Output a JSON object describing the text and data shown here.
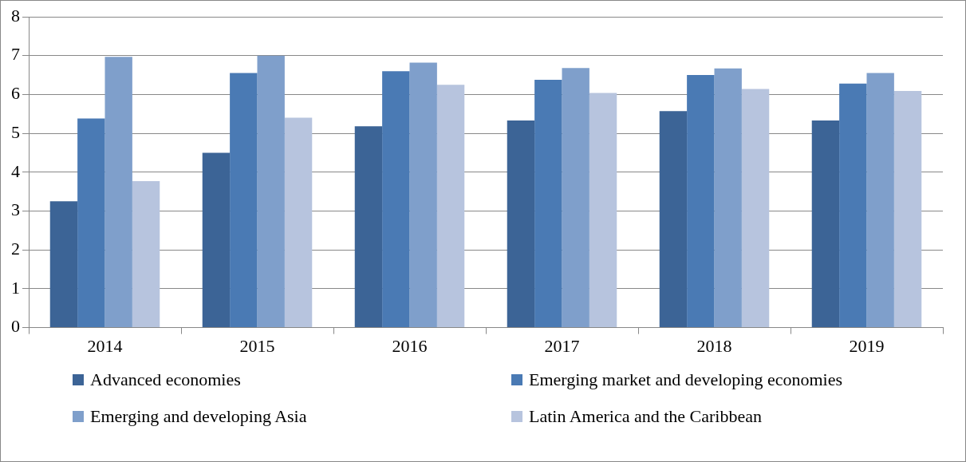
{
  "chart_data": {
    "type": "bar",
    "categories": [
      "2014",
      "2015",
      "2016",
      "2017",
      "2018",
      "2019"
    ],
    "series": [
      {
        "name": "Advanced economies",
        "color": "#3c6496",
        "values": [
          3.25,
          4.5,
          5.18,
          5.33,
          5.57,
          5.33
        ]
      },
      {
        "name": "Emerging market and developing economies",
        "color": "#4a7ab4",
        "values": [
          5.38,
          6.55,
          6.6,
          6.38,
          6.5,
          6.28
        ]
      },
      {
        "name": "Emerging and developing Asia",
        "color": "#7f9fcb",
        "values": [
          6.97,
          7.0,
          6.82,
          6.68,
          6.67,
          6.55
        ]
      },
      {
        "name": "Latin America and the Caribbean",
        "color": "#b7c4de",
        "values": [
          3.77,
          5.4,
          6.25,
          6.04,
          6.14,
          6.09
        ]
      }
    ],
    "ylim": [
      0,
      8
    ],
    "yticks": [
      0,
      1,
      2,
      3,
      4,
      5,
      6,
      7,
      8
    ],
    "grid": "y",
    "legend": "bottom"
  }
}
